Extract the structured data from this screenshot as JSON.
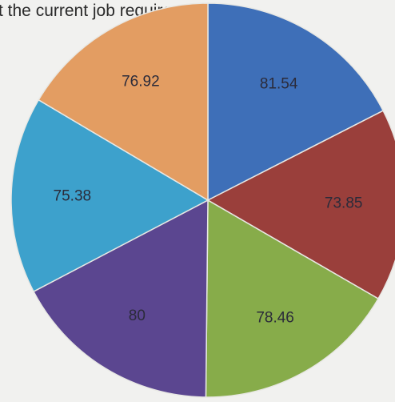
{
  "chart_data": {
    "type": "pie",
    "title": "t the current job requirements?",
    "slices": [
      {
        "label": "81.54",
        "value": 81.54,
        "color": "#3e6fb8"
      },
      {
        "label": "73.85",
        "value": 73.85,
        "color": "#9a3f3b"
      },
      {
        "label": "78.46",
        "value": 78.46,
        "color": "#87ac4a"
      },
      {
        "label": "80",
        "value": 80,
        "color": "#5b4690"
      },
      {
        "label": "75.38",
        "value": 75.38,
        "color": "#3da1cc"
      },
      {
        "label": "76.92",
        "value": 76.92,
        "color": "#e39d62"
      }
    ],
    "legend": "none"
  }
}
